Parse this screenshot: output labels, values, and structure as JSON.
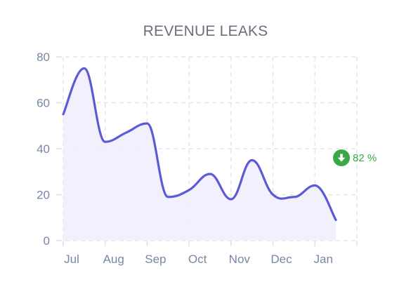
{
  "colors": {
    "line": "#5b5bd6",
    "area": "#f1eefc",
    "grid": "#dde1ea",
    "axis_text": "#7a86a8",
    "title": "#6b6f7d",
    "positive": "#3aa845"
  },
  "badge": {
    "icon": "arrow-down-circle-icon",
    "value": "82 %"
  },
  "chart_data": {
    "type": "area",
    "title": "REVENUE LEAKS",
    "xlabel": "",
    "ylabel": "",
    "categories": [
      "Jul",
      "Aug",
      "Sep",
      "Oct",
      "Nov",
      "Dec",
      "Jan"
    ],
    "ylim": [
      0,
      80
    ],
    "yticks": [
      "0",
      "20",
      "40",
      "60",
      "80"
    ],
    "grid": true,
    "series": [
      {
        "x": [
          0,
          0.5,
          1.0,
          1.5,
          2.0,
          2.5,
          3.0,
          3.5,
          4.0,
          4.5,
          5.0,
          5.5,
          6.0,
          6.5
        ],
        "values": [
          55,
          75,
          43,
          47,
          51,
          19,
          22,
          29,
          18,
          35,
          20,
          19,
          24,
          9
        ]
      }
    ]
  }
}
